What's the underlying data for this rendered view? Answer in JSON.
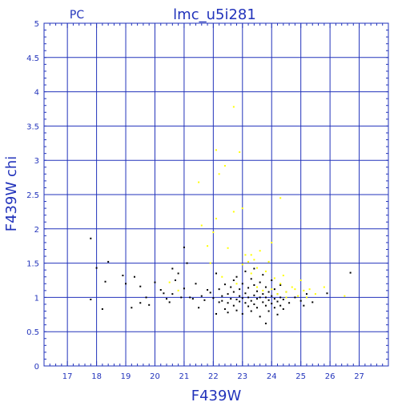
{
  "chart_data": {
    "type": "scatter",
    "title": "lmc_u5i281",
    "corner_label": "PC",
    "xlabel": "F439W",
    "ylabel": "F439W  chi",
    "xlim": [
      16.2,
      28.0
    ],
    "ylim": [
      0,
      5
    ],
    "x_ticks": [
      17,
      18,
      19,
      20,
      21,
      22,
      23,
      24,
      25,
      26,
      27
    ],
    "y_ticks": [
      0,
      0.5,
      1,
      1.5,
      2,
      2.5,
      3,
      3.5,
      4,
      4.5,
      5
    ],
    "y_tick_labels": [
      "0",
      "0.5",
      "1",
      "1.5",
      "2",
      "2.5",
      "3",
      "3.5",
      "4",
      "4.5",
      "5"
    ],
    "grid": true,
    "colors": {
      "axis": "#2233bb",
      "black_points": "#000000",
      "yellow_points": "#ffff00"
    },
    "series": [
      {
        "color": "#000000",
        "points": [
          [
            17.8,
            1.86
          ],
          [
            17.8,
            0.97
          ],
          [
            18.0,
            1.43
          ],
          [
            18.2,
            0.83
          ],
          [
            18.3,
            1.23
          ],
          [
            18.4,
            1.52
          ],
          [
            18.9,
            1.32
          ],
          [
            19.0,
            1.2
          ],
          [
            19.2,
            0.85
          ],
          [
            19.3,
            1.3
          ],
          [
            19.5,
            1.16
          ],
          [
            19.5,
            0.92
          ],
          [
            19.7,
            1.0
          ],
          [
            19.8,
            0.89
          ],
          [
            20.0,
            1.22
          ],
          [
            20.2,
            1.11
          ],
          [
            20.3,
            1.06
          ],
          [
            20.4,
            0.98
          ],
          [
            20.5,
            0.93
          ],
          [
            20.6,
            1.42
          ],
          [
            20.6,
            1.05
          ],
          [
            20.7,
            1.25
          ],
          [
            20.8,
            1.35
          ],
          [
            20.9,
            1.0
          ],
          [
            21.0,
            1.73
          ],
          [
            21.0,
            1.13
          ],
          [
            21.1,
            1.5
          ],
          [
            21.2,
            1.0
          ],
          [
            21.3,
            0.98
          ],
          [
            21.4,
            1.2
          ],
          [
            21.5,
            0.85
          ],
          [
            21.6,
            1.02
          ],
          [
            21.7,
            0.96
          ],
          [
            21.8,
            1.11
          ],
          [
            21.9,
            1.07
          ],
          [
            22.0,
            0.99
          ],
          [
            22.1,
            0.76
          ],
          [
            22.1,
            1.35
          ],
          [
            22.2,
            0.93
          ],
          [
            22.2,
            1.12
          ],
          [
            22.3,
            0.95
          ],
          [
            22.3,
            1.02
          ],
          [
            22.4,
            0.83
          ],
          [
            22.4,
            1.19
          ],
          [
            22.5,
            0.92
          ],
          [
            22.5,
            1.05
          ],
          [
            22.5,
            0.78
          ],
          [
            22.6,
            1.15
          ],
          [
            22.6,
            0.98
          ],
          [
            22.7,
            1.08
          ],
          [
            22.7,
            0.88
          ],
          [
            22.7,
            1.25
          ],
          [
            22.8,
            0.97
          ],
          [
            22.8,
            1.3
          ],
          [
            22.8,
            0.81
          ],
          [
            22.9,
            1.02
          ],
          [
            22.9,
            0.94
          ],
          [
            22.9,
            1.12
          ],
          [
            23.0,
            0.99
          ],
          [
            23.0,
            0.76
          ],
          [
            23.0,
            1.2
          ],
          [
            23.1,
            0.92
          ],
          [
            23.1,
            1.06
          ],
          [
            23.1,
            1.38
          ],
          [
            23.2,
            0.87
          ],
          [
            23.2,
            1.0
          ],
          [
            23.2,
            1.14
          ],
          [
            23.3,
            0.95
          ],
          [
            23.3,
            1.27
          ],
          [
            23.3,
            0.8
          ],
          [
            23.4,
            1.03
          ],
          [
            23.4,
            0.9
          ],
          [
            23.4,
            1.18
          ],
          [
            23.4,
            1.42
          ],
          [
            23.5,
            0.98
          ],
          [
            23.5,
            0.85
          ],
          [
            23.5,
            1.09
          ],
          [
            23.6,
            1.0
          ],
          [
            23.6,
            0.72
          ],
          [
            23.6,
            1.22
          ],
          [
            23.7,
            0.93
          ],
          [
            23.7,
            1.05
          ],
          [
            23.7,
            1.33
          ],
          [
            23.8,
            0.88
          ],
          [
            23.8,
            1.0
          ],
          [
            23.8,
            0.62
          ],
          [
            23.8,
            1.15
          ],
          [
            23.9,
            0.96
          ],
          [
            23.9,
            1.08
          ],
          [
            23.9,
            0.8
          ],
          [
            24.0,
            1.02
          ],
          [
            24.0,
            0.91
          ],
          [
            24.0,
            1.25
          ],
          [
            24.1,
            0.98
          ],
          [
            24.1,
            0.85
          ],
          [
            24.1,
            1.12
          ],
          [
            24.2,
            0.94
          ],
          [
            24.2,
            1.05
          ],
          [
            24.2,
            0.75
          ],
          [
            24.3,
            1.0
          ],
          [
            24.3,
            0.88
          ],
          [
            24.3,
            1.18
          ],
          [
            24.4,
            0.97
          ],
          [
            24.4,
            0.83
          ],
          [
            24.5,
            1.08
          ],
          [
            24.6,
            0.92
          ],
          [
            24.8,
            1.0
          ],
          [
            25.0,
            0.95
          ],
          [
            25.1,
            0.88
          ],
          [
            25.2,
            1.05
          ],
          [
            25.4,
            0.93
          ],
          [
            25.9,
            1.06
          ],
          [
            26.7,
            1.36
          ]
        ]
      },
      {
        "color": "#ffff00",
        "points": [
          [
            20.5,
            1.22
          ],
          [
            20.8,
            1.1
          ],
          [
            21.5,
            2.68
          ],
          [
            21.6,
            2.05
          ],
          [
            21.8,
            1.75
          ],
          [
            21.9,
            1.5
          ],
          [
            22.0,
            1.95
          ],
          [
            22.1,
            3.15
          ],
          [
            22.1,
            2.15
          ],
          [
            22.2,
            2.8
          ],
          [
            22.3,
            1.3
          ],
          [
            22.4,
            2.92
          ],
          [
            22.5,
            1.72
          ],
          [
            22.7,
            3.78
          ],
          [
            22.7,
            2.25
          ],
          [
            22.8,
            1.2
          ],
          [
            22.9,
            3.12
          ],
          [
            23.0,
            2.3
          ],
          [
            23.0,
            1.48
          ],
          [
            23.1,
            1.62
          ],
          [
            23.2,
            1.52
          ],
          [
            23.3,
            1.35
          ],
          [
            23.3,
            1.62
          ],
          [
            23.4,
            1.55
          ],
          [
            23.5,
            1.15
          ],
          [
            23.5,
            1.43
          ],
          [
            23.6,
            1.68
          ],
          [
            23.7,
            1.1
          ],
          [
            23.8,
            1.38
          ],
          [
            23.9,
            1.52
          ],
          [
            24.0,
            1.12
          ],
          [
            24.0,
            1.8
          ],
          [
            24.1,
            1.28
          ],
          [
            24.2,
            1.05
          ],
          [
            24.3,
            2.45
          ],
          [
            24.3,
            1.2
          ],
          [
            24.4,
            1.32
          ],
          [
            24.5,
            1.08
          ],
          [
            24.5,
            1.0
          ],
          [
            24.7,
            1.15
          ],
          [
            24.8,
            1.12
          ],
          [
            24.9,
            1.02
          ],
          [
            25.0,
            1.25
          ],
          [
            25.1,
            1.1
          ],
          [
            25.2,
            1.0
          ],
          [
            25.3,
            1.12
          ],
          [
            25.5,
            1.05
          ],
          [
            25.8,
            1.15
          ],
          [
            26.5,
            1.02
          ]
        ]
      }
    ]
  }
}
